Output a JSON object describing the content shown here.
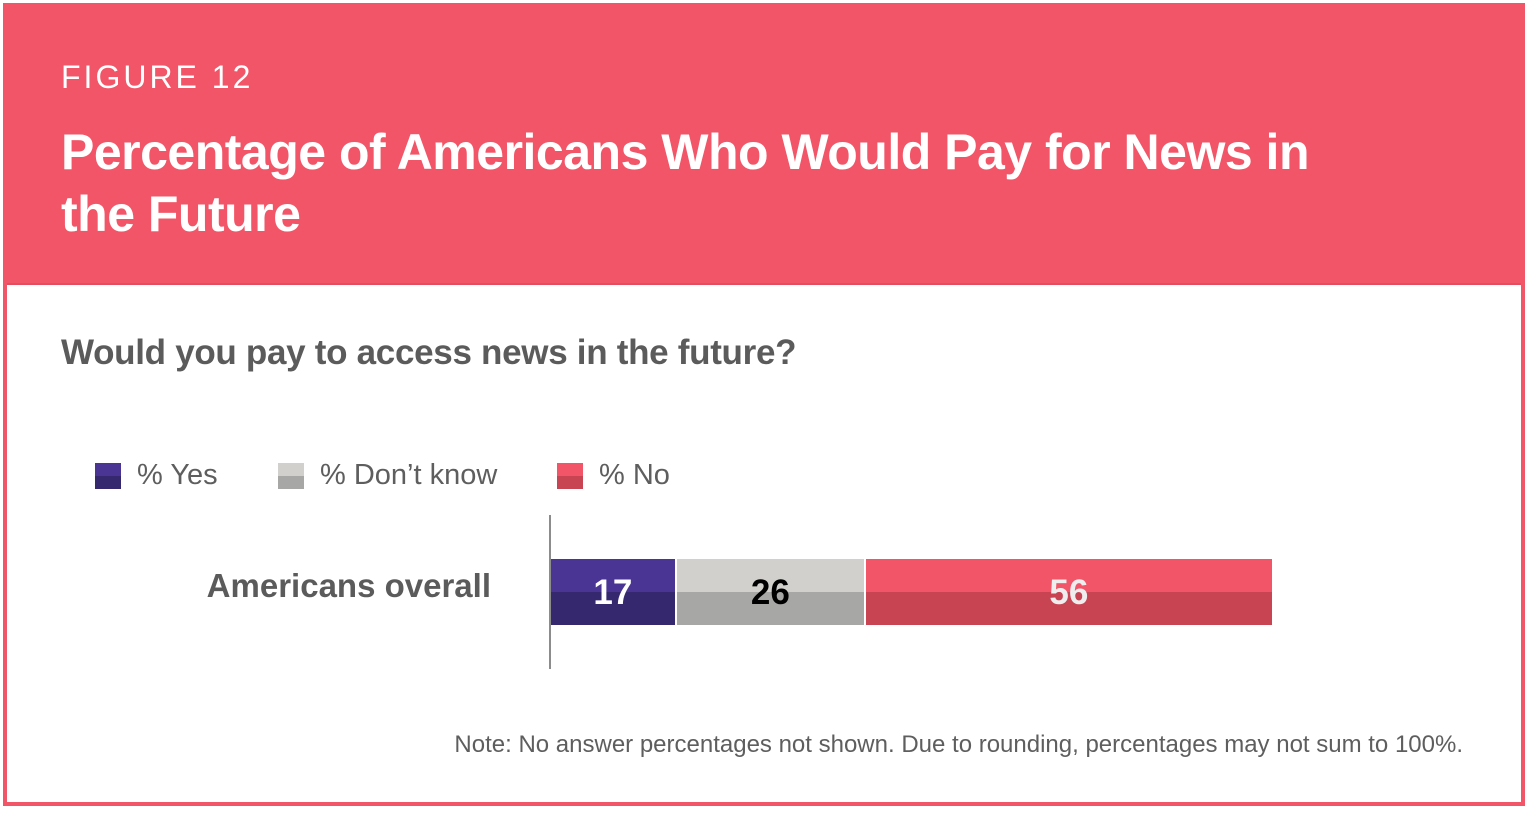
{
  "figure_label": "FIGURE 12",
  "title": "Percentage of Americans Who Would Pay for News in the Future",
  "note": "Note: No answer percentages not shown. Due to rounding, percentages may not sum to 100%.",
  "colors": {
    "brand": "#f25567",
    "yes_top": "#4b3594",
    "yes_bottom": "#36286f",
    "dontknow_top": "#d1d0cc",
    "dontknow_bottom": "#a7a7a5",
    "no_top": "#f25567",
    "no_bottom": "#c84452"
  },
  "chart_data": {
    "type": "bar",
    "orientation": "horizontal",
    "stacked": true,
    "title": "Would you pay to access news in the future?",
    "categories": [
      "Americans overall"
    ],
    "series": [
      {
        "name": "% Yes",
        "values": [
          17
        ],
        "label_color": "#ffffff"
      },
      {
        "name": "% Don’t know",
        "values": [
          26
        ],
        "label_color": "#000000"
      },
      {
        "name": "% No",
        "values": [
          56
        ],
        "label_color": "#eeeeee"
      }
    ],
    "xlim": [
      0,
      100
    ],
    "legend_position": "top-left",
    "grid": false
  }
}
